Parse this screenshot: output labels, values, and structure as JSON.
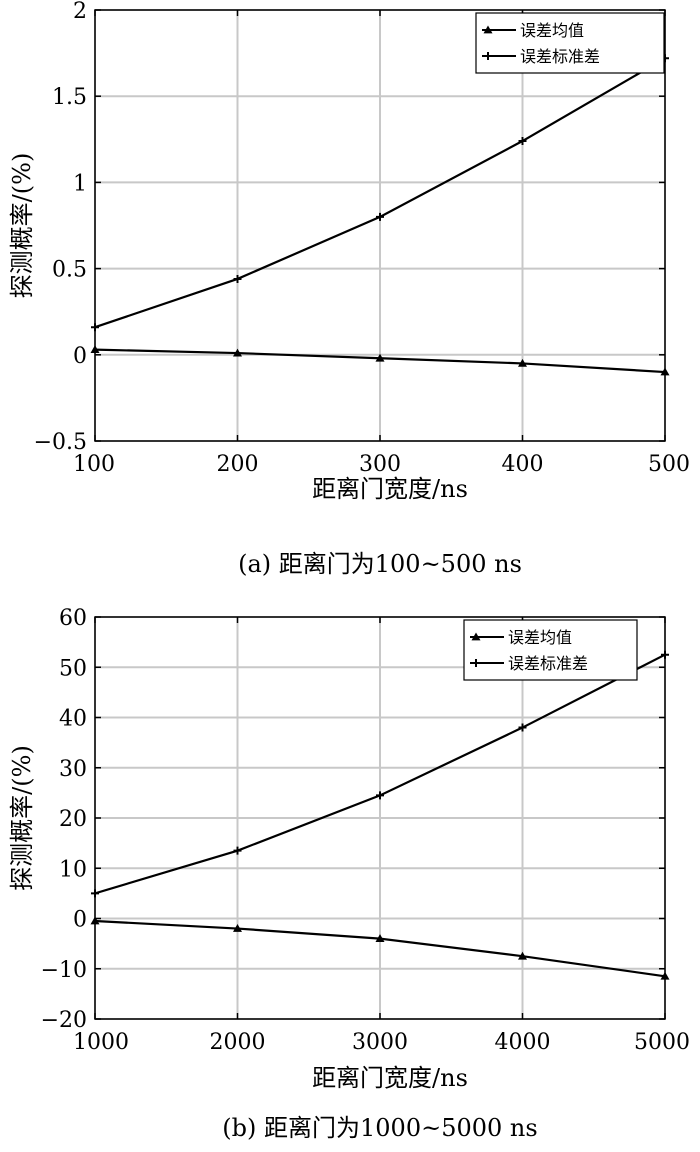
{
  "chart_data": [
    {
      "type": "line",
      "x": [
        100,
        200,
        300,
        400,
        500
      ],
      "xlim": [
        100,
        500
      ],
      "ylim": [
        -0.5,
        2
      ],
      "xticks": [
        "100",
        "200",
        "300",
        "400",
        "500"
      ],
      "yticks": [
        "−0.5",
        "0",
        "0.5",
        "1",
        "1.5",
        "2"
      ],
      "xlabel": "距离门宽度/ns",
      "ylabel": "探测概率/(%)",
      "caption": "(a) 距离门为100~500 ns",
      "grid": true,
      "legend_position": "top-right",
      "series": [
        {
          "name": "误差均值",
          "marker": "triangle",
          "values": [
            0.03,
            0.01,
            -0.02,
            -0.05,
            -0.1
          ]
        },
        {
          "name": "误差标准差",
          "marker": "plus",
          "values": [
            0.16,
            0.44,
            0.8,
            1.24,
            1.72
          ]
        }
      ]
    },
    {
      "type": "line",
      "x": [
        1000,
        2000,
        3000,
        4000,
        5000
      ],
      "xlim": [
        1000,
        5000
      ],
      "ylim": [
        -20,
        60
      ],
      "xticks": [
        "1000",
        "2000",
        "3000",
        "4000",
        "5000"
      ],
      "yticks": [
        "−20",
        "−10",
        "0",
        "10",
        "20",
        "30",
        "40",
        "50",
        "60"
      ],
      "xlabel": "距离门宽度/ns",
      "ylabel": "探测概率/(%)",
      "caption": "(b) 距离门为1000~5000 ns",
      "grid": true,
      "legend_position": "top-right",
      "series": [
        {
          "name": "误差均值",
          "marker": "triangle",
          "values": [
            -0.5,
            -2,
            -4,
            -7.5,
            -11.5
          ]
        },
        {
          "name": "误差标准差",
          "marker": "plus",
          "values": [
            5,
            13.5,
            24.5,
            38,
            52.5
          ]
        }
      ]
    }
  ]
}
